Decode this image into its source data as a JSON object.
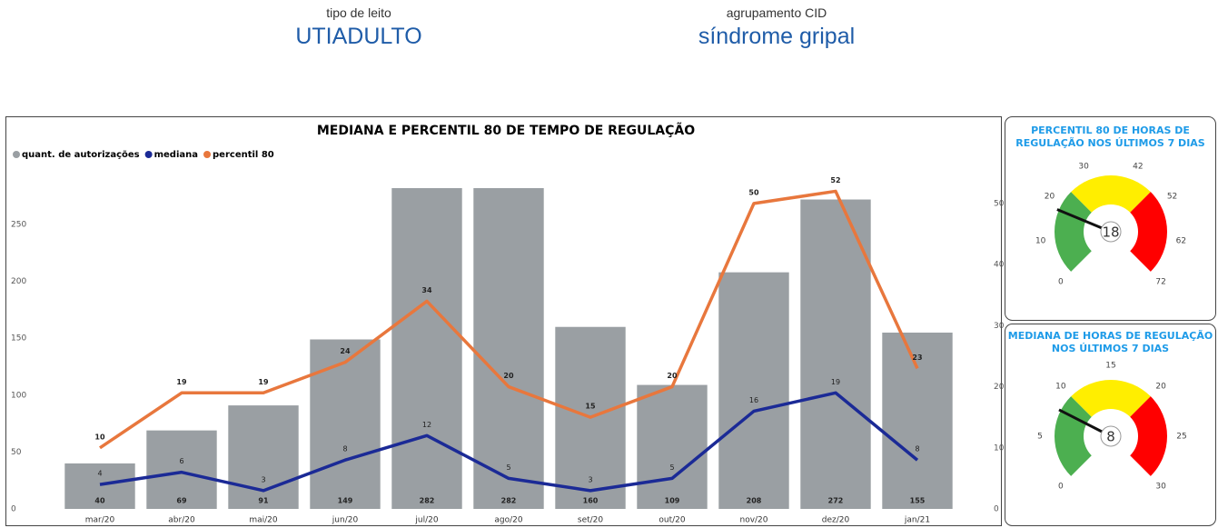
{
  "header": {
    "filters": [
      {
        "label": "tipo de leito",
        "value": "UTIADULTO"
      },
      {
        "label": "agrupamento CID",
        "value": "síndrome gripal"
      }
    ]
  },
  "chart_data": [
    {
      "type": "combo",
      "title": "MEDIANA E PERCENTIL 80 DE TEMPO DE REGULAÇÃO",
      "categories": [
        "mar/20",
        "abr/20",
        "mai/20",
        "jun/20",
        "jul/20",
        "ago/20",
        "set/20",
        "out/20",
        "nov/20",
        "dez/20",
        "jan/21"
      ],
      "series": [
        {
          "name": "quant. de autorizações",
          "type": "bar",
          "color": "#9a9fa3",
          "values": [
            40,
            69,
            91,
            149,
            282,
            282,
            160,
            109,
            208,
            272,
            155
          ]
        },
        {
          "name": "mediana",
          "type": "line",
          "axis": "y2",
          "color": "#1b2a96",
          "values": [
            4,
            6,
            3,
            8,
            12,
            5,
            3,
            5,
            16,
            19,
            8
          ]
        },
        {
          "name": "percentil 80",
          "type": "line",
          "axis": "y2",
          "color": "#e8773d",
          "values": [
            10,
            19,
            19,
            24,
            34,
            20,
            15,
            20,
            50,
            52,
            23
          ]
        }
      ],
      "ylim": [
        0,
        290
      ],
      "yticks": [
        0,
        50,
        100,
        150,
        200,
        250
      ],
      "y2lim": [
        0,
        54
      ],
      "y2ticks": [
        0,
        10,
        20,
        30,
        40,
        50
      ],
      "legend": "top-left",
      "grid": false
    },
    {
      "type": "gauge",
      "title": "PERCENTIL 80 DE HORAS DE REGULAÇÃO NOS ÚLTIMOS 7 DIAS",
      "value": 18,
      "range": [
        0,
        72
      ],
      "ticks": [
        0,
        10,
        20,
        30,
        42,
        52,
        62,
        72
      ],
      "bands": [
        {
          "from": 0,
          "to": 24,
          "color": "#4caf50"
        },
        {
          "from": 24,
          "to": 48,
          "color": "#ffee00"
        },
        {
          "from": 48,
          "to": 72,
          "color": "#ff0000"
        }
      ]
    },
    {
      "type": "gauge",
      "title": "MEDIANA DE HORAS DE REGULAÇÃO NOS ÚLTIMOS 7 DIAS",
      "value": 8,
      "range": [
        0,
        30
      ],
      "ticks": [
        0,
        5,
        10,
        15,
        20,
        25,
        30
      ],
      "bands": [
        {
          "from": 0,
          "to": 10,
          "color": "#4caf50"
        },
        {
          "from": 10,
          "to": 20,
          "color": "#ffee00"
        },
        {
          "from": 20,
          "to": 30,
          "color": "#ff0000"
        }
      ]
    }
  ]
}
